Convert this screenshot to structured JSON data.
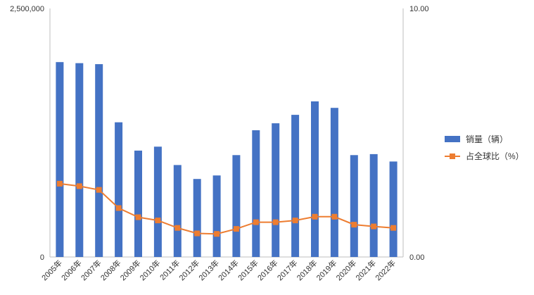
{
  "chart_data": {
    "type": "bar",
    "categories": [
      "2005年",
      "2006年",
      "2007年",
      "2008年",
      "2009年",
      "2010年",
      "2011年",
      "2012年",
      "2013年",
      "2014年",
      "2015年",
      "2016年",
      "2017年",
      "2018年",
      "2019年",
      "2020年",
      "2021年",
      "2022年"
    ],
    "series": [
      {
        "name": "销量（辆）",
        "type": "bar",
        "axis": "left",
        "color": "#4472C4",
        "values": [
          1960000,
          1950000,
          1940000,
          1355000,
          1070000,
          1110000,
          925000,
          785000,
          820000,
          1025000,
          1275000,
          1345000,
          1430000,
          1565000,
          1500000,
          1025000,
          1035000,
          960000
        ]
      },
      {
        "name": "占全球比（%）",
        "type": "line",
        "axis": "right",
        "color": "#ED7D31",
        "values": [
          2.95,
          2.85,
          2.7,
          1.97,
          1.6,
          1.47,
          1.17,
          0.95,
          0.93,
          1.13,
          1.4,
          1.4,
          1.47,
          1.62,
          1.62,
          1.3,
          1.23,
          1.17
        ]
      }
    ],
    "y_left": {
      "min": 0,
      "max": 2500000,
      "tick_labels": [
        "0",
        "2,500,000"
      ]
    },
    "y_right": {
      "min": 0,
      "max": 10,
      "tick_labels": [
        "0.00",
        "10.00"
      ]
    },
    "grid": false,
    "legend_position": "right"
  }
}
